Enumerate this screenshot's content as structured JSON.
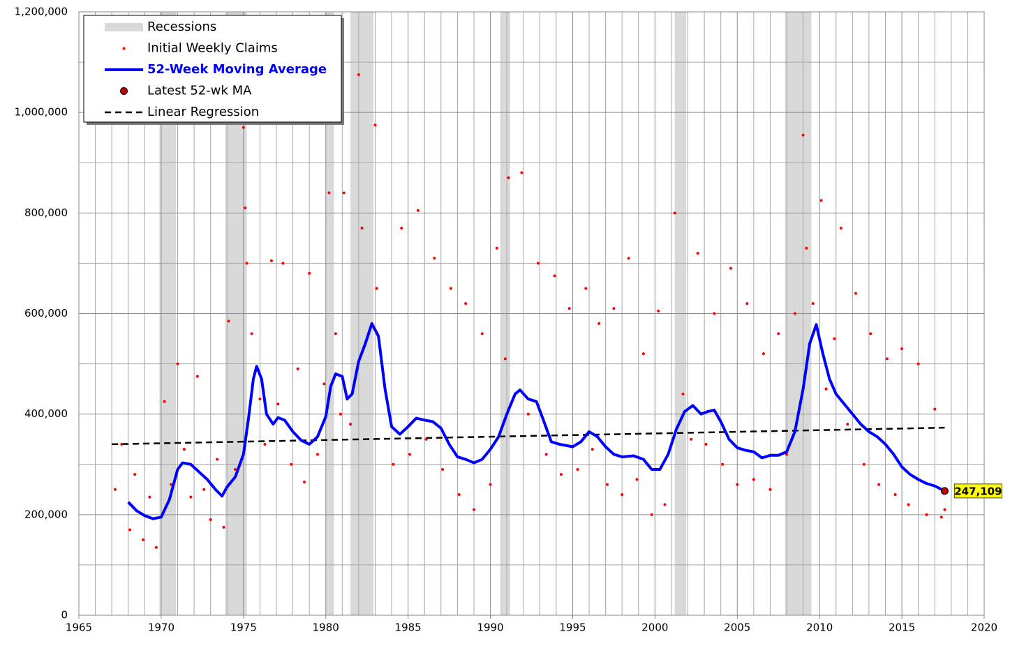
{
  "chart_data": {
    "type": "combo",
    "xlim": [
      1965,
      2020
    ],
    "xticks": [
      1965,
      1970,
      1975,
      1980,
      1985,
      1990,
      1995,
      2000,
      2005,
      2010,
      2015,
      2020
    ],
    "x_minor_grid": [
      1966,
      1967,
      1968,
      1969,
      1971,
      1972,
      1973,
      1974,
      1976,
      1977,
      1978,
      1979,
      1981,
      1982,
      1983,
      1984,
      1986,
      1987,
      1988,
      1989,
      1991,
      1992,
      1993,
      1994,
      1996,
      1997,
      1998,
      1999,
      2001,
      2002,
      2003,
      2004,
      2006,
      2007,
      2008,
      2009,
      2011,
      2012,
      2013,
      2014,
      2016,
      2017,
      2018,
      2019
    ],
    "ylim": [
      0,
      1200000
    ],
    "yticks": [
      0,
      {
        "value": 200000,
        "label": "200,000"
      },
      {
        "value": 400000,
        "label": "400,000"
      },
      {
        "value": 600000,
        "label": "600,000"
      },
      {
        "value": 800000,
        "label": "800,000"
      },
      {
        "value": 1000000,
        "label": "1,000,000"
      },
      {
        "value": 1200000,
        "label": "1,200,000"
      }
    ],
    "y_minor_grid": [
      100000,
      300000,
      500000,
      700000,
      900000,
      1100000
    ],
    "grid": true,
    "legend": "top-left",
    "recessions": {
      "name": "Recessions",
      "color": "#d9d9d9",
      "periods": [
        [
          1969.9,
          1970.9
        ],
        [
          1973.9,
          1975.2
        ],
        [
          1980.0,
          1980.5
        ],
        [
          1981.5,
          1982.9
        ],
        [
          1990.6,
          1991.2
        ],
        [
          2001.2,
          2001.9
        ],
        [
          2007.9,
          2009.5
        ]
      ]
    },
    "series": [
      {
        "name": "Initial Weekly Claims",
        "color": "#ff0000",
        "kind": "scatter",
        "x": [
          1967.2,
          1967.6,
          1968.1,
          1968.4,
          1968.9,
          1969.3,
          1969.7,
          1970.2,
          1970.6,
          1971.0,
          1971.4,
          1971.8,
          1972.2,
          1972.6,
          1973.0,
          1973.4,
          1973.8,
          1974.1,
          1974.5,
          1975.0,
          1975.1,
          1975.2,
          1975.5,
          1976.0,
          1976.3,
          1976.7,
          1977.1,
          1977.4,
          1977.9,
          1978.3,
          1978.7,
          1979.0,
          1979.5,
          1979.9,
          1980.2,
          1980.6,
          1980.9,
          1981.1,
          1981.5,
          1982.0,
          1982.2,
          1982.6,
          1983.0,
          1983.1,
          1983.5,
          1984.1,
          1984.6,
          1985.1,
          1985.6,
          1986.1,
          1986.6,
          1987.1,
          1987.6,
          1988.1,
          1988.5,
          1989.0,
          1989.5,
          1990.0,
          1990.4,
          1990.9,
          1991.1,
          1991.9,
          1992.3,
          1992.9,
          1993.4,
          1993.9,
          1994.3,
          1994.8,
          1995.3,
          1995.8,
          1996.2,
          1996.6,
          1997.1,
          1997.5,
          1998.0,
          1998.4,
          1998.9,
          1999.3,
          1999.8,
          2000.2,
          2000.6,
          2001.2,
          2001.7,
          2002.2,
          2002.6,
          2003.1,
          2003.6,
          2004.1,
          2004.6,
          2005.0,
          2005.6,
          2006.0,
          2006.6,
          2007.0,
          2007.5,
          2008.0,
          2008.5,
          2009.0,
          2009.2,
          2009.6,
          2010.1,
          2010.4,
          2010.9,
          2011.3,
          2011.7,
          2012.2,
          2012.7,
          2013.1,
          2013.6,
          2014.1,
          2014.6,
          2015.0,
          2015.4,
          2016.0,
          2016.5,
          2017.0,
          2017.4,
          2017.6
        ],
        "values": [
          250000,
          340000,
          170000,
          280000,
          150000,
          235000,
          135000,
          425000,
          260000,
          500000,
          330000,
          235000,
          475000,
          250000,
          190000,
          310000,
          175000,
          585000,
          290000,
          970000,
          810000,
          700000,
          560000,
          430000,
          340000,
          705000,
          420000,
          700000,
          300000,
          490000,
          265000,
          680000,
          320000,
          460000,
          840000,
          560000,
          400000,
          840000,
          380000,
          1075000,
          770000,
          560000,
          975000,
          650000,
          480000,
          300000,
          770000,
          320000,
          805000,
          350000,
          710000,
          290000,
          650000,
          240000,
          620000,
          210000,
          560000,
          260000,
          730000,
          510000,
          870000,
          880000,
          400000,
          700000,
          320000,
          675000,
          280000,
          610000,
          290000,
          650000,
          330000,
          580000,
          260000,
          610000,
          240000,
          710000,
          270000,
          520000,
          200000,
          605000,
          220000,
          800000,
          440000,
          350000,
          720000,
          340000,
          600000,
          300000,
          690000,
          260000,
          620000,
          270000,
          520000,
          250000,
          560000,
          320000,
          600000,
          955000,
          730000,
          620000,
          825000,
          450000,
          550000,
          770000,
          380000,
          640000,
          300000,
          560000,
          260000,
          510000,
          240000,
          530000,
          220000,
          500000,
          200000,
          410000,
          195000,
          210000
        ]
      },
      {
        "name": "52-Week Moving Average",
        "color": "#0000ff",
        "kind": "line",
        "x": [
          1968.0,
          1968.5,
          1969.0,
          1969.5,
          1970.0,
          1970.5,
          1971.0,
          1971.3,
          1971.8,
          1972.3,
          1972.8,
          1973.3,
          1973.7,
          1974.0,
          1974.5,
          1975.0,
          1975.3,
          1975.6,
          1975.8,
          1976.1,
          1976.4,
          1976.8,
          1977.1,
          1977.5,
          1978.0,
          1978.5,
          1979.0,
          1979.5,
          1980.0,
          1980.3,
          1980.6,
          1981.0,
          1981.3,
          1981.6,
          1982.0,
          1982.4,
          1982.8,
          1983.2,
          1983.6,
          1984.0,
          1984.5,
          1985.0,
          1985.5,
          1986.0,
          1986.5,
          1987.0,
          1987.5,
          1988.0,
          1988.5,
          1989.0,
          1989.5,
          1990.0,
          1990.5,
          1991.0,
          1991.5,
          1991.8,
          1992.3,
          1992.8,
          1993.2,
          1993.7,
          1994.2,
          1995.0,
          1995.5,
          1996.0,
          1996.5,
          1997.0,
          1997.5,
          1998.0,
          1998.7,
          1999.3,
          1999.8,
          2000.3,
          2000.8,
          2001.3,
          2001.8,
          2002.3,
          2002.8,
          2003.2,
          2003.6,
          2004.0,
          2004.5,
          2005.0,
          2005.5,
          2006.0,
          2006.5,
          2007.0,
          2007.5,
          2008.0,
          2008.5,
          2009.0,
          2009.4,
          2009.8,
          2010.2,
          2010.6,
          2011.0,
          2011.5,
          2012.0,
          2012.5,
          2013.0,
          2013.5,
          2014.0,
          2014.5,
          2015.0,
          2015.5,
          2016.0,
          2016.5,
          2017.0,
          2017.6
        ],
        "values": [
          225000,
          208000,
          198000,
          192000,
          195000,
          230000,
          290000,
          303000,
          300000,
          285000,
          270000,
          250000,
          237000,
          255000,
          275000,
          320000,
          390000,
          470000,
          495000,
          470000,
          400000,
          380000,
          393000,
          388000,
          365000,
          348000,
          340000,
          355000,
          395000,
          455000,
          480000,
          475000,
          430000,
          440000,
          505000,
          540000,
          580000,
          555000,
          450000,
          375000,
          360000,
          375000,
          392000,
          388000,
          385000,
          372000,
          340000,
          315000,
          310000,
          303000,
          310000,
          330000,
          355000,
          400000,
          440000,
          448000,
          430000,
          425000,
          390000,
          345000,
          340000,
          335000,
          345000,
          365000,
          355000,
          335000,
          320000,
          315000,
          317000,
          310000,
          290000,
          290000,
          320000,
          370000,
          405000,
          417000,
          400000,
          405000,
          408000,
          385000,
          350000,
          333000,
          328000,
          325000,
          313000,
          318000,
          318000,
          325000,
          365000,
          450000,
          540000,
          578000,
          520000,
          470000,
          440000,
          420000,
          400000,
          380000,
          365000,
          355000,
          340000,
          320000,
          295000,
          280000,
          270000,
          262000,
          257000,
          247109
        ]
      },
      {
        "name": "Latest 52-wk MA",
        "color": "#c00000",
        "kind": "point",
        "x": [
          2017.6
        ],
        "values": [
          247109
        ],
        "value_labels": [
          "247,109"
        ]
      },
      {
        "name": "Linear Regression",
        "color": "#000000",
        "kind": "dashed",
        "x": [
          1967.0,
          2017.6
        ],
        "values": [
          340000,
          373000
        ]
      }
    ]
  }
}
